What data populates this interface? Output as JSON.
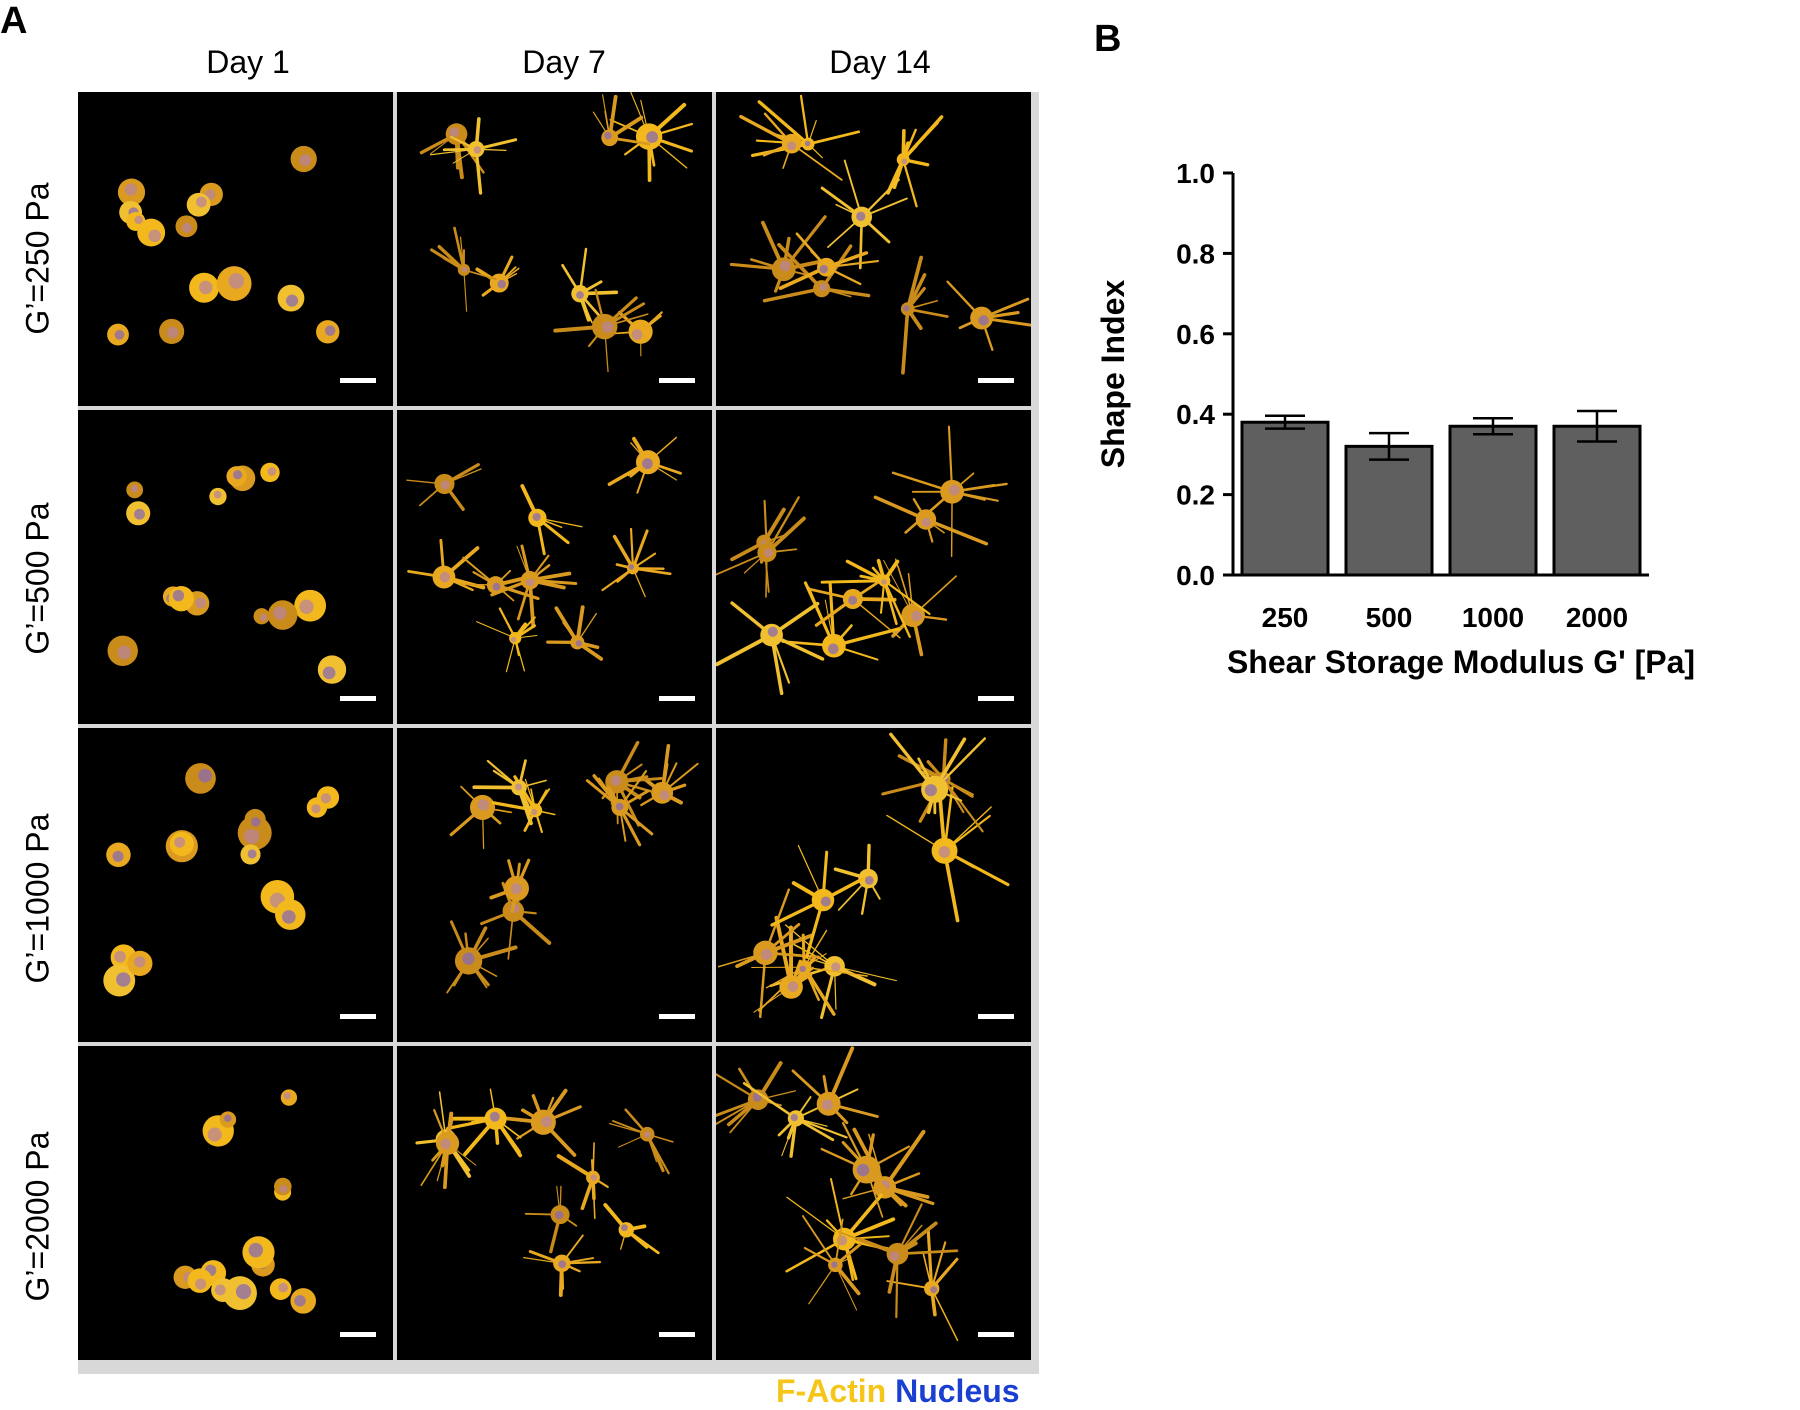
{
  "panel_a": {
    "letter": "A",
    "columns": [
      "Day 1",
      "Day 7",
      "Day 14"
    ],
    "rows": [
      "G’=250 Pa",
      "G’=500 Pa",
      "G’=1000 Pa",
      "G’=2000 Pa"
    ],
    "legend": {
      "factin": "F-Actin",
      "nucleus": "Nucleus",
      "factin_color": "#f5c518",
      "nucleus_color": "#1a3fd1"
    }
  },
  "panel_b": {
    "letter": "B"
  },
  "chart_data": {
    "type": "bar",
    "categories": [
      "250",
      "500",
      "1000",
      "2000"
    ],
    "values": [
      0.38,
      0.32,
      0.37,
      0.37
    ],
    "errors": [
      0.016,
      0.033,
      0.02,
      0.038
    ],
    "ylabel": "Shape Index",
    "xlabel": "Shear Storage Modulus G' [Pa]",
    "ylim": [
      0.0,
      1.0
    ],
    "yticks": [
      "0.0",
      "0.2",
      "0.4",
      "0.6",
      "0.8",
      "1.0"
    ],
    "bar_color": "#5f5f5f",
    "grid": false
  }
}
